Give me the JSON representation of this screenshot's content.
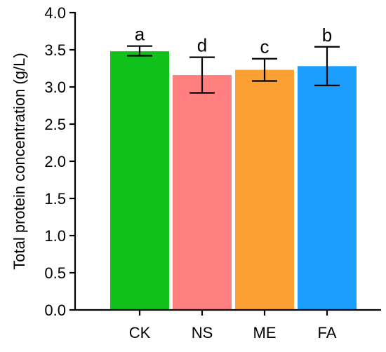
{
  "chart_data": {
    "type": "bar",
    "title": "",
    "xlabel": "",
    "ylabel": "Total protein concentration (g/L)",
    "categories": [
      "CK",
      "NS",
      "ME",
      "FA"
    ],
    "values": [
      3.48,
      3.16,
      3.23,
      3.28
    ],
    "error_bars": [
      {
        "low": 3.42,
        "high": 3.55
      },
      {
        "low": 2.92,
        "high": 3.4
      },
      {
        "low": 3.08,
        "high": 3.38
      },
      {
        "low": 3.02,
        "high": 3.54
      }
    ],
    "significance_labels": [
      "a",
      "d",
      "c",
      "b"
    ],
    "colors": [
      "#11c11b",
      "#ff7f7f",
      "#fda033",
      "#1a9dfc"
    ],
    "ylim": [
      0.0,
      4.0
    ],
    "yticks": [
      "0.0",
      "0.5",
      "1.0",
      "1.5",
      "2.0",
      "2.5",
      "3.0",
      "3.5",
      "4.0"
    ],
    "grid": false,
    "legend": "none"
  }
}
